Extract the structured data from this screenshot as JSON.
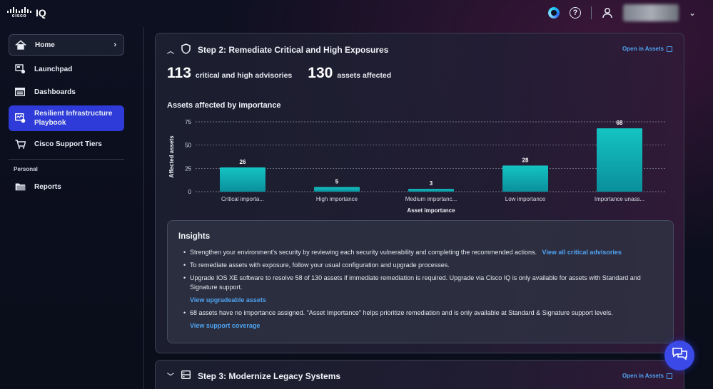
{
  "app": {
    "brand": "cisco",
    "product": "IQ"
  },
  "header": {
    "icons": [
      "webex-icon",
      "help-icon",
      "user-icon",
      "chevron-down-icon"
    ]
  },
  "sidebar": {
    "items": [
      {
        "label": "Home",
        "icon": "home-icon"
      },
      {
        "label": "Launchpad",
        "icon": "launchpad-icon"
      },
      {
        "label": "Dashboards",
        "icon": "dashboards-icon"
      },
      {
        "label": "Resilient Infrastructure Playbook",
        "icon": "playbook-icon",
        "active": true
      },
      {
        "label": "Cisco Support Tiers",
        "icon": "cart-icon"
      }
    ],
    "section_label": "Personal",
    "personal_items": [
      {
        "label": "Reports",
        "icon": "folder-icon"
      }
    ]
  },
  "step2": {
    "title": "Step 2: Remediate Critical and High Exposures",
    "open_link": "Open in Assets",
    "stat1_value": "113",
    "stat1_label": "critical and high advisories",
    "stat2_value": "130",
    "stat2_label": "assets affected",
    "chart_title": "Assets affected by importance"
  },
  "chart_data": {
    "type": "bar",
    "title": "Assets affected by importance",
    "categories": [
      "Critical importa...",
      "High importance",
      "Medium importanc...",
      "Low importance",
      "Importance unass..."
    ],
    "values": [
      26,
      5,
      3,
      28,
      68
    ],
    "xlabel": "Asset importance",
    "ylabel": "Affected assets",
    "yticks": [
      0,
      25,
      50,
      75
    ],
    "ylim": [
      0,
      75
    ],
    "grid": true,
    "bar_color": "#10b3b5"
  },
  "insights": {
    "title": "Insights",
    "items": [
      {
        "text": "Strengthen your environment's security by reviewing each security vulnerability and completing the recommended actions.",
        "link": "View all critical advisories"
      },
      {
        "text": "To remediate assets with exposure, follow your usual configuration and upgrade processes."
      },
      {
        "text": "Upgrade IOS XE software to resolve 58 of 130 assets if immediate remediation is required. Upgrade via Cisco IQ is only available for assets with Standard and Signature support.",
        "link": "View upgradeable assets"
      },
      {
        "text": "68 assets have no importance assigned. \"Asset Importance\" helps prioritize remediation and is only available at Standard & Signature support levels.",
        "link": "View support coverage"
      }
    ]
  },
  "step3": {
    "title": "Step 3: Modernize Legacy Systems",
    "open_link": "Open in Assets"
  },
  "colors": {
    "accent": "#2e3bd8",
    "link": "#4ea3f0",
    "bar": "#10b3b5"
  }
}
